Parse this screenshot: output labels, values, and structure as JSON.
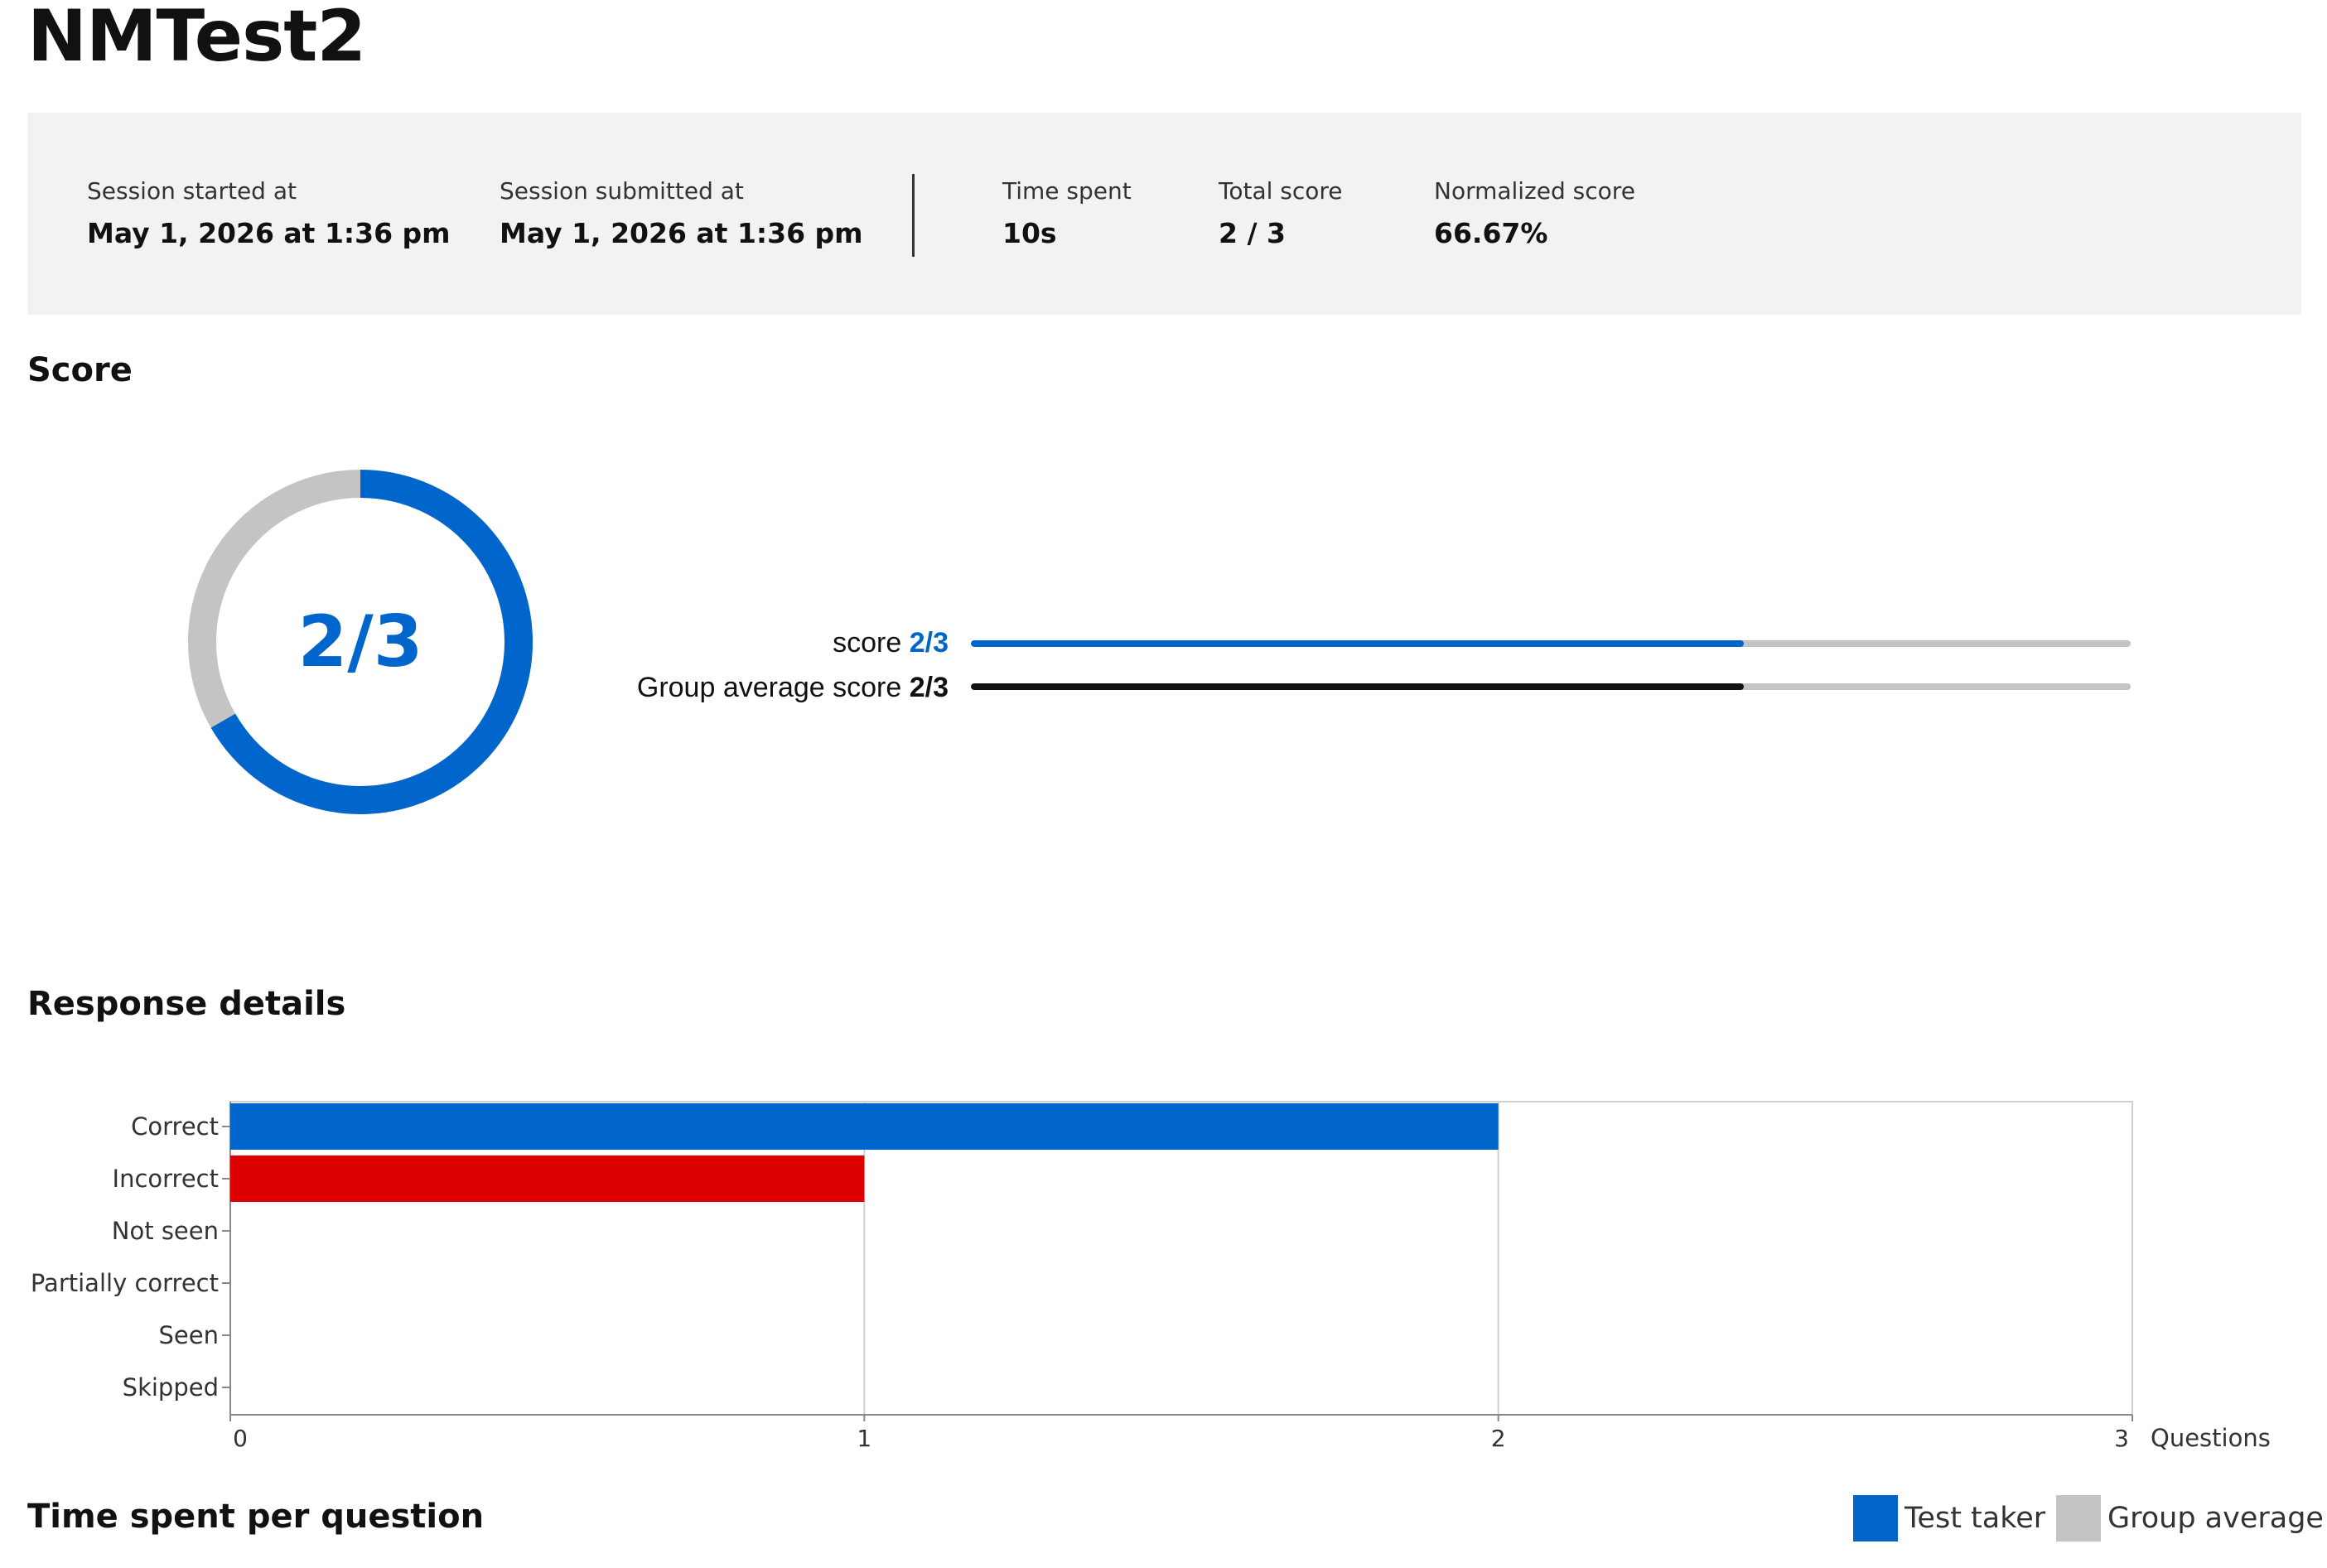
{
  "page": {
    "title": "NMTest2"
  },
  "summary": {
    "session_started": {
      "label": "Session started at",
      "value": "May 1, 2026 at 1:36 pm"
    },
    "session_submitted": {
      "label": "Session submitted at",
      "value": "May 1, 2026 at 1:36 pm"
    },
    "time_spent": {
      "label": "Time spent",
      "value": "10s"
    },
    "total_score": {
      "label": "Total score",
      "value": "2 / 3"
    },
    "normalized_score": {
      "label": "Normalized score",
      "value": "66.67%"
    }
  },
  "score_section": {
    "title": "Score",
    "donut_label": "2/3",
    "donut_fraction": 0.6667,
    "rows": [
      {
        "label": "score",
        "value": "2/3",
        "fraction": 0.6667,
        "color": "#0066cc"
      },
      {
        "label": "Group average score",
        "value": "2/3",
        "fraction": 0.6667,
        "color": "#111111"
      }
    ]
  },
  "response_section": {
    "title": "Response details"
  },
  "time_section": {
    "title": "Time spent per question"
  },
  "colors": {
    "accent": "#0066cc",
    "incorrect": "#dd0000",
    "track": "#c4c4c4",
    "group": "#c4c4c4",
    "summary_bg": "#f2f2f2"
  },
  "chart_data": {
    "type": "bar",
    "orientation": "horizontal",
    "categories": [
      "Correct",
      "Incorrect",
      "Not seen",
      "Partially correct",
      "Seen",
      "Skipped"
    ],
    "values": [
      2,
      1,
      0,
      0,
      0,
      0
    ],
    "colors": [
      "#0066cc",
      "#dd0000",
      "#0066cc",
      "#0066cc",
      "#0066cc",
      "#0066cc"
    ],
    "xlabel": "Questions",
    "xlim": [
      0,
      3
    ],
    "xticks": [
      0,
      1,
      2,
      3
    ],
    "grid": true
  },
  "legend": {
    "items": [
      {
        "label": "Test taker",
        "color": "#0066cc"
      },
      {
        "label": "Group average",
        "color": "#c4c4c4"
      }
    ]
  }
}
